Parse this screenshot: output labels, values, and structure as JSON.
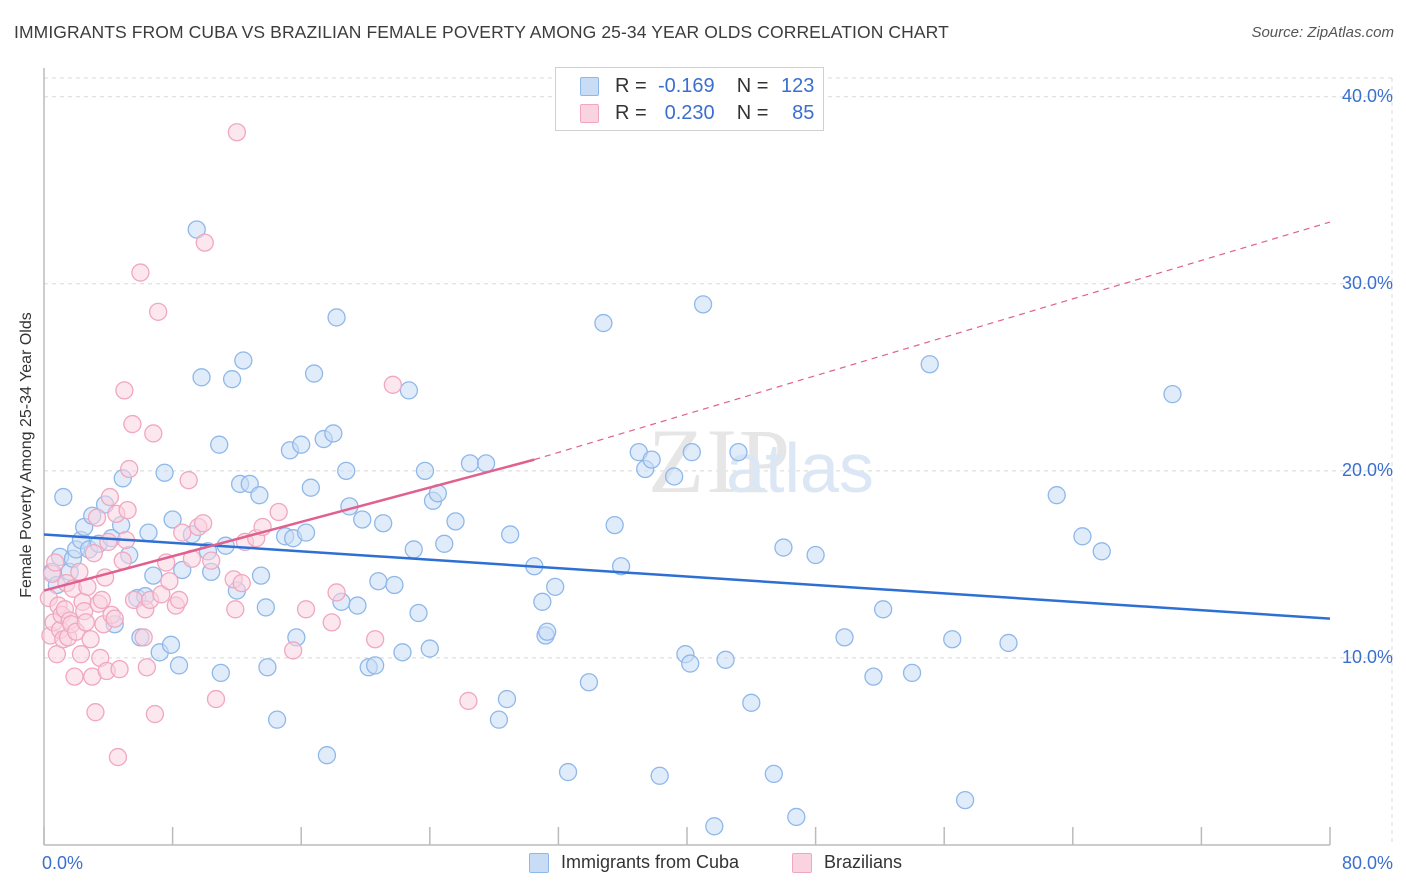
{
  "chart_data": {
    "type": "scatter",
    "title": "IMMIGRANTS FROM CUBA VS BRAZILIAN FEMALE POVERTY AMONG 25-34 YEAR OLDS CORRELATION CHART",
    "source": "Source: ZipAtlas.com",
    "xlabel": "",
    "ylabel": "Female Poverty Among 25-34 Year Olds",
    "xlim": [
      0,
      80
    ],
    "ylim": [
      0,
      41
    ],
    "x_tick_labels": {
      "min": "0.0%",
      "max": "80.0%"
    },
    "y_ticks": [
      10,
      20,
      30,
      40
    ],
    "y_tick_labels": [
      "10.0%",
      "20.0%",
      "30.0%",
      "40.0%"
    ],
    "grid": true,
    "watermark": "ZIPatlas",
    "legend": {
      "r_label": "R =",
      "n_label": "N =",
      "entries": [
        {
          "name": "Immigrants from Cuba",
          "r": "-0.169",
          "n": "123"
        },
        {
          "name": "Brazilians",
          "r": "0.230",
          "n": "85"
        }
      ]
    },
    "series": [
      {
        "name": "Immigrants from Cuba",
        "color": "#8fb8ea",
        "fill": "#c8dcf5",
        "trend": {
          "x": [
            0,
            80
          ],
          "y": [
            16.6,
            12.1
          ],
          "color": "#2e6fd3"
        },
        "points": [
          [
            0.5,
            14.6
          ],
          [
            0.8,
            13.9
          ],
          [
            1.0,
            15.4
          ],
          [
            1.2,
            18.6
          ],
          [
            1.6,
            14.6
          ],
          [
            1.8,
            15.3
          ],
          [
            2.0,
            15.8
          ],
          [
            2.3,
            16.3
          ],
          [
            2.5,
            17.0
          ],
          [
            2.8,
            15.8
          ],
          [
            3.0,
            17.6
          ],
          [
            3.4,
            16.1
          ],
          [
            3.8,
            18.2
          ],
          [
            4.2,
            16.4
          ],
          [
            4.4,
            11.8
          ],
          [
            4.8,
            17.1
          ],
          [
            4.9,
            19.6
          ],
          [
            5.3,
            15.5
          ],
          [
            5.8,
            13.2
          ],
          [
            6.0,
            11.1
          ],
          [
            6.3,
            13.3
          ],
          [
            6.5,
            16.7
          ],
          [
            6.8,
            14.4
          ],
          [
            7.2,
            10.3
          ],
          [
            7.5,
            19.9
          ],
          [
            7.9,
            10.7
          ],
          [
            8.0,
            17.4
          ],
          [
            8.4,
            9.6
          ],
          [
            8.6,
            14.7
          ],
          [
            9.2,
            16.6
          ],
          [
            9.5,
            32.9
          ],
          [
            9.8,
            25.0
          ],
          [
            10.2,
            15.7
          ],
          [
            10.4,
            14.6
          ],
          [
            10.9,
            21.4
          ],
          [
            11.0,
            9.2
          ],
          [
            11.3,
            16.0
          ],
          [
            11.7,
            24.9
          ],
          [
            12.0,
            13.6
          ],
          [
            12.2,
            19.3
          ],
          [
            12.4,
            25.9
          ],
          [
            12.8,
            19.3
          ],
          [
            13.4,
            18.7
          ],
          [
            13.5,
            14.4
          ],
          [
            13.8,
            12.7
          ],
          [
            13.9,
            9.5
          ],
          [
            14.5,
            6.7
          ],
          [
            15.0,
            16.5
          ],
          [
            15.3,
            21.1
          ],
          [
            15.5,
            16.4
          ],
          [
            15.7,
            11.1
          ],
          [
            16.0,
            21.4
          ],
          [
            16.3,
            16.7
          ],
          [
            16.6,
            19.1
          ],
          [
            16.8,
            25.2
          ],
          [
            17.4,
            21.7
          ],
          [
            17.6,
            4.8
          ],
          [
            18.0,
            22.0
          ],
          [
            18.2,
            28.2
          ],
          [
            18.5,
            13.0
          ],
          [
            18.8,
            20.0
          ],
          [
            19.0,
            18.1
          ],
          [
            19.5,
            12.8
          ],
          [
            19.8,
            17.4
          ],
          [
            20.2,
            9.5
          ],
          [
            20.6,
            9.6
          ],
          [
            20.8,
            14.1
          ],
          [
            21.1,
            17.2
          ],
          [
            21.8,
            13.9
          ],
          [
            22.3,
            10.3
          ],
          [
            22.7,
            24.3
          ],
          [
            23.0,
            15.8
          ],
          [
            23.3,
            12.4
          ],
          [
            23.7,
            20.0
          ],
          [
            24.0,
            10.5
          ],
          [
            24.2,
            18.4
          ],
          [
            24.5,
            18.8
          ],
          [
            24.9,
            16.1
          ],
          [
            25.6,
            17.3
          ],
          [
            26.5,
            20.4
          ],
          [
            27.5,
            20.4
          ],
          [
            28.3,
            6.7
          ],
          [
            28.8,
            7.8
          ],
          [
            29.0,
            16.6
          ],
          [
            30.5,
            14.9
          ],
          [
            31.0,
            13.0
          ],
          [
            31.2,
            11.2
          ],
          [
            31.3,
            11.4
          ],
          [
            31.8,
            13.8
          ],
          [
            32.6,
            3.9
          ],
          [
            33.9,
            8.7
          ],
          [
            34.8,
            27.9
          ],
          [
            35.5,
            17.1
          ],
          [
            35.9,
            14.9
          ],
          [
            37.0,
            21.0
          ],
          [
            37.4,
            20.1
          ],
          [
            37.8,
            20.6
          ],
          [
            38.3,
            3.7
          ],
          [
            39.2,
            19.7
          ],
          [
            39.9,
            10.2
          ],
          [
            40.2,
            9.7
          ],
          [
            40.3,
            21.0
          ],
          [
            41.0,
            28.9
          ],
          [
            41.7,
            1.0
          ],
          [
            42.4,
            9.9
          ],
          [
            43.2,
            21.0
          ],
          [
            44.0,
            7.6
          ],
          [
            45.4,
            3.8
          ],
          [
            46.0,
            15.9
          ],
          [
            46.8,
            1.5
          ],
          [
            48.0,
            15.5
          ],
          [
            49.8,
            11.1
          ],
          [
            51.6,
            9.0
          ],
          [
            52.2,
            12.6
          ],
          [
            54.0,
            9.2
          ],
          [
            55.1,
            25.7
          ],
          [
            56.5,
            11.0
          ],
          [
            57.3,
            2.4
          ],
          [
            60.0,
            10.8
          ],
          [
            63.0,
            18.7
          ],
          [
            64.6,
            16.5
          ],
          [
            65.8,
            15.7
          ],
          [
            70.2,
            24.1
          ]
        ]
      },
      {
        "name": "Brazilians",
        "color": "#f0a7bf",
        "fill": "#f9d3e0",
        "trend": {
          "x": [
            0,
            30.5
          ],
          "y": [
            13.6,
            20.6
          ],
          "color": "#e0608f"
        },
        "trend_extension": {
          "x": [
            30.5,
            80
          ],
          "y": [
            20.6,
            33.3
          ]
        },
        "points": [
          [
            0.3,
            13.2
          ],
          [
            0.4,
            11.2
          ],
          [
            0.5,
            14.5
          ],
          [
            0.6,
            11.9
          ],
          [
            0.7,
            15.1
          ],
          [
            0.8,
            10.2
          ],
          [
            0.9,
            12.8
          ],
          [
            1.0,
            11.5
          ],
          [
            1.1,
            12.3
          ],
          [
            1.2,
            11.0
          ],
          [
            1.3,
            12.6
          ],
          [
            1.4,
            14.0
          ],
          [
            1.5,
            11.1
          ],
          [
            1.6,
            12.0
          ],
          [
            1.7,
            11.8
          ],
          [
            1.8,
            13.7
          ],
          [
            1.9,
            9.0
          ],
          [
            2.0,
            11.4
          ],
          [
            2.2,
            14.6
          ],
          [
            2.3,
            10.2
          ],
          [
            2.4,
            13.0
          ],
          [
            2.5,
            12.5
          ],
          [
            2.6,
            11.9
          ],
          [
            2.7,
            13.8
          ],
          [
            2.9,
            11.0
          ],
          [
            3.0,
            9.0
          ],
          [
            3.1,
            15.6
          ],
          [
            3.2,
            7.1
          ],
          [
            3.3,
            17.5
          ],
          [
            3.4,
            12.9
          ],
          [
            3.5,
            10.0
          ],
          [
            3.6,
            13.1
          ],
          [
            3.7,
            11.8
          ],
          [
            3.8,
            14.3
          ],
          [
            3.9,
            9.3
          ],
          [
            4.0,
            16.2
          ],
          [
            4.1,
            18.6
          ],
          [
            4.2,
            12.3
          ],
          [
            4.4,
            12.1
          ],
          [
            4.5,
            17.7
          ],
          [
            4.6,
            4.7
          ],
          [
            4.7,
            9.4
          ],
          [
            4.9,
            15.2
          ],
          [
            5.0,
            24.3
          ],
          [
            5.1,
            16.3
          ],
          [
            5.2,
            17.9
          ],
          [
            5.3,
            20.1
          ],
          [
            5.5,
            22.5
          ],
          [
            5.6,
            13.1
          ],
          [
            6.0,
            30.6
          ],
          [
            6.2,
            11.1
          ],
          [
            6.3,
            12.6
          ],
          [
            6.4,
            9.5
          ],
          [
            6.6,
            13.1
          ],
          [
            6.8,
            22.0
          ],
          [
            6.9,
            7.0
          ],
          [
            7.1,
            28.5
          ],
          [
            7.3,
            13.4
          ],
          [
            7.6,
            15.1
          ],
          [
            7.8,
            14.1
          ],
          [
            8.2,
            12.8
          ],
          [
            8.4,
            13.1
          ],
          [
            8.6,
            16.7
          ],
          [
            9.0,
            19.5
          ],
          [
            9.2,
            15.3
          ],
          [
            9.6,
            17.0
          ],
          [
            9.9,
            17.2
          ],
          [
            10.0,
            32.2
          ],
          [
            10.4,
            15.2
          ],
          [
            10.7,
            7.8
          ],
          [
            11.8,
            14.2
          ],
          [
            11.9,
            12.6
          ],
          [
            12.0,
            38.1
          ],
          [
            12.3,
            14.0
          ],
          [
            12.5,
            16.2
          ],
          [
            13.2,
            16.4
          ],
          [
            13.6,
            17.0
          ],
          [
            14.6,
            17.8
          ],
          [
            15.5,
            10.4
          ],
          [
            16.3,
            12.6
          ],
          [
            17.9,
            11.9
          ],
          [
            18.2,
            13.5
          ],
          [
            20.6,
            11.0
          ],
          [
            21.7,
            24.6
          ],
          [
            26.4,
            7.7
          ]
        ]
      }
    ]
  }
}
